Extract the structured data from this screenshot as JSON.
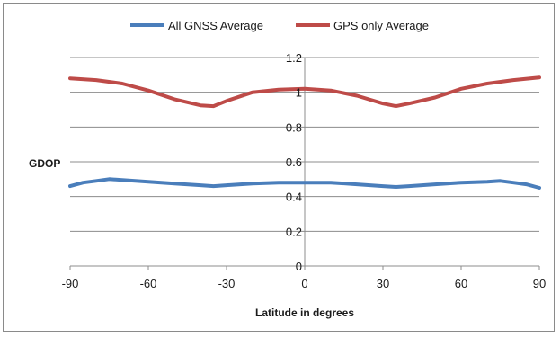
{
  "chart_data": {
    "type": "line",
    "xlabel": "Latitude in degrees",
    "ylabel": "GDOP",
    "xlim": [
      -90,
      90
    ],
    "ylim": [
      0,
      1.2
    ],
    "x_ticks": [
      "-90",
      "-60",
      "-30",
      "0",
      "30",
      "60",
      "90"
    ],
    "y_ticks": [
      "0",
      "0.2",
      "0.4",
      "0.6",
      "0.8",
      "1",
      "1.2"
    ],
    "grid": "horizontal",
    "legend_position": "top",
    "series": [
      {
        "name": "All GNSS Average",
        "color": "#4a7ebb",
        "x": [
          -90,
          -85,
          -80,
          -75,
          -70,
          -60,
          -50,
          -40,
          -35,
          -30,
          -20,
          -10,
          0,
          10,
          20,
          30,
          35,
          40,
          50,
          60,
          70,
          75,
          80,
          85,
          90
        ],
        "y": [
          0.46,
          0.48,
          0.49,
          0.5,
          0.495,
          0.485,
          0.475,
          0.465,
          0.46,
          0.465,
          0.475,
          0.48,
          0.48,
          0.48,
          0.47,
          0.46,
          0.455,
          0.46,
          0.47,
          0.48,
          0.485,
          0.49,
          0.48,
          0.47,
          0.45
        ]
      },
      {
        "name": "GPS only Average",
        "color": "#be4b48",
        "x": [
          -90,
          -80,
          -70,
          -60,
          -50,
          -40,
          -35,
          -30,
          -20,
          -10,
          0,
          10,
          20,
          30,
          35,
          40,
          50,
          60,
          70,
          80,
          90
        ],
        "y": [
          1.08,
          1.07,
          1.05,
          1.01,
          0.96,
          0.925,
          0.92,
          0.95,
          1.0,
          1.015,
          1.02,
          1.01,
          0.98,
          0.935,
          0.92,
          0.935,
          0.97,
          1.02,
          1.05,
          1.07,
          1.085
        ]
      }
    ]
  }
}
